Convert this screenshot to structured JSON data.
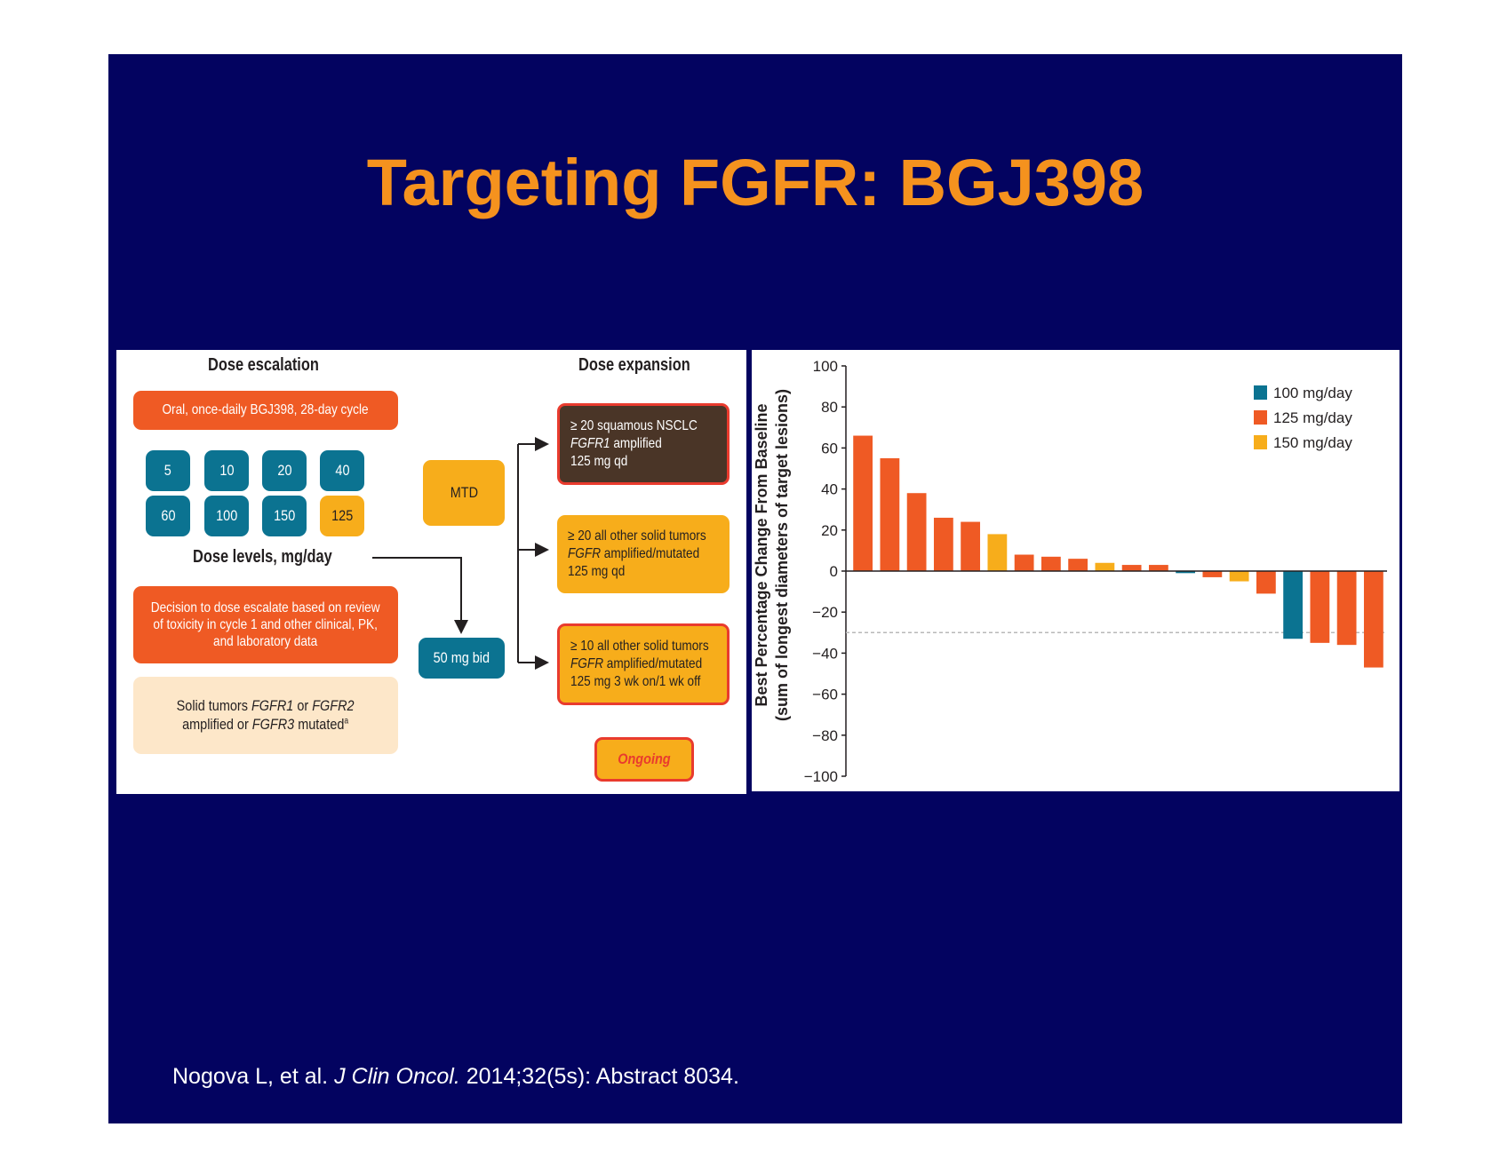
{
  "slide": {
    "title": "Targeting FGFR: BGJ398",
    "citation": {
      "authors": "Nogova L, et al.",
      "journal": "J Clin Oncol.",
      "rest": "2014;32(5s): Abstract 8034."
    }
  },
  "design": {
    "escalation_header": "Dose escalation",
    "expansion_header": "Dose expansion",
    "oral_box": "Oral, once-daily BGJ398, 28-day cycle",
    "dose_levels": [
      "5",
      "10",
      "20",
      "40",
      "60",
      "100",
      "150",
      "125"
    ],
    "dose_levels_label": "Dose levels, mg/day",
    "decision_lines": [
      "Decision to dose escalate based on review",
      "of toxicity in cycle 1 and other clinical, PK,",
      "and laboratory data"
    ],
    "tumors_line1_a": "Solid tumors ",
    "tumors_line1_b": "FGFR1",
    "tumors_line1_c": " or ",
    "tumors_line1_d": "FGFR2",
    "tumors_line2_a": "amplified or ",
    "tumors_line2_b": "FGFR3",
    "tumors_line2_c": " mutated",
    "tumors_sup": "a",
    "mtd": "MTD",
    "bid": "50 mg bid",
    "exp1": {
      "line1": "≥ 20 squamous NSCLC",
      "gene": "FGFR1",
      "line2_rest": " amplified",
      "line3": "125 mg qd"
    },
    "exp2": {
      "line1": "≥ 20 all other solid tumors",
      "gene": "FGFR",
      "line2_rest": " amplified/mutated",
      "line3": "125 mg qd"
    },
    "exp3": {
      "line1": "≥ 10 all other solid tumors",
      "gene": "FGFR",
      "line2_rest": " amplified/mutated",
      "line3": "125 mg 3 wk on/1 wk off"
    },
    "ongoing": "Ongoing"
  },
  "chart_data": {
    "type": "bar",
    "ylabel_line1": "Best Percentage Change From Baseline",
    "ylabel_line2": "(sum of longest diameters of target lesions)",
    "ylim": [
      -100,
      100
    ],
    "yticks": [
      100,
      80,
      60,
      40,
      20,
      0,
      -20,
      -40,
      -60,
      -80,
      -100
    ],
    "reference_line": -30,
    "legend": [
      {
        "label": "100 mg/day",
        "color": "#0b7391"
      },
      {
        "label": "125 mg/day",
        "color": "#ef5a24"
      },
      {
        "label": "150 mg/day",
        "color": "#f7ad1b"
      }
    ],
    "legend_position": "top-right",
    "bars": [
      {
        "value": 66,
        "dose": "125 mg/day"
      },
      {
        "value": 55,
        "dose": "125 mg/day"
      },
      {
        "value": 38,
        "dose": "125 mg/day"
      },
      {
        "value": 26,
        "dose": "125 mg/day"
      },
      {
        "value": 24,
        "dose": "125 mg/day"
      },
      {
        "value": 18,
        "dose": "150 mg/day"
      },
      {
        "value": 8,
        "dose": "125 mg/day"
      },
      {
        "value": 7,
        "dose": "125 mg/day"
      },
      {
        "value": 6,
        "dose": "125 mg/day"
      },
      {
        "value": 4,
        "dose": "150 mg/day"
      },
      {
        "value": 3,
        "dose": "125 mg/day"
      },
      {
        "value": 3,
        "dose": "125 mg/day"
      },
      {
        "value": -1,
        "dose": "100 mg/day"
      },
      {
        "value": -3,
        "dose": "125 mg/day"
      },
      {
        "value": -5,
        "dose": "150 mg/day"
      },
      {
        "value": -11,
        "dose": "125 mg/day"
      },
      {
        "value": -33,
        "dose": "100 mg/day"
      },
      {
        "value": -35,
        "dose": "125 mg/day"
      },
      {
        "value": -36,
        "dose": "125 mg/day"
      },
      {
        "value": -47,
        "dose": "125 mg/day"
      }
    ]
  }
}
